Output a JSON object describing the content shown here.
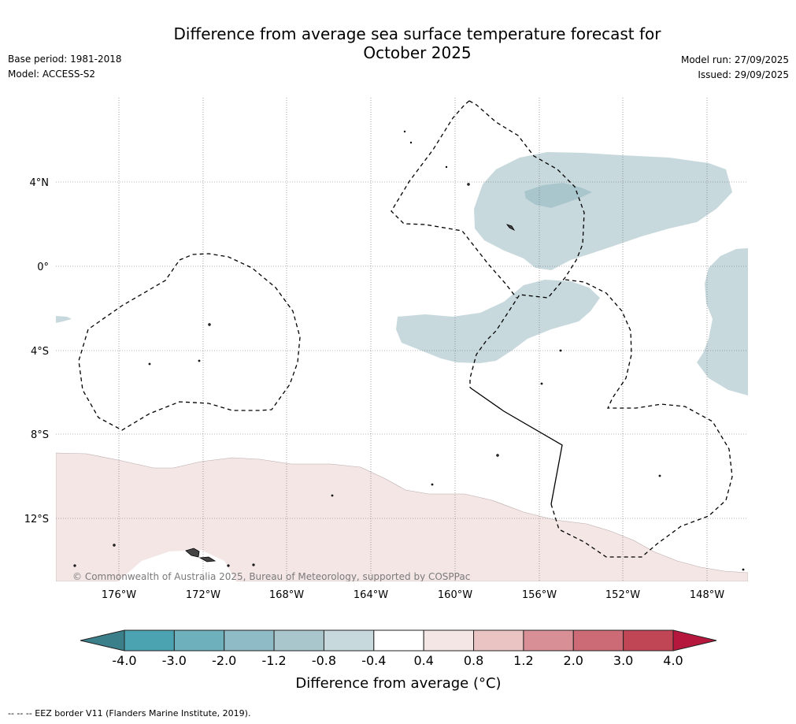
{
  "title_line1": "Difference from average sea surface temperature forecast for",
  "title_line2": "October 2025",
  "meta_left": {
    "base_period": "Base period: 1981-2018",
    "model": "Model: ACCESS-S2"
  },
  "meta_right": {
    "model_run": "Model run: 27/09/2025",
    "issued": "Issued: 29/09/2025"
  },
  "map": {
    "lat_labels": [
      "4°N",
      "0°",
      "4°S",
      "8°S",
      "12°S"
    ],
    "lon_labels": [
      "176°W",
      "172°W",
      "168°W",
      "164°W",
      "160°W",
      "156°W",
      "152°W",
      "148°W"
    ],
    "copyright": "© Commonwealth of Australia 2025, Bureau of Meteorology, supported by COSPPac"
  },
  "colorbar": {
    "ticks": [
      "-4.0",
      "-3.0",
      "-2.0",
      "-1.2",
      "-0.8",
      "-0.4",
      "0.4",
      "0.8",
      "1.2",
      "2.0",
      "3.0",
      "4.0"
    ],
    "colors": [
      "#4ba3b1",
      "#6eb0bc",
      "#8ebbc5",
      "#aac6cd",
      "#c8d9dd",
      "#ffffff",
      "#f5e6e6",
      "#e9c4c3",
      "#d88f95",
      "#cc6a76",
      "#c04656"
    ],
    "under_color": "#3a7f8a",
    "over_color": "#b5173d",
    "title": "Difference from average (°C)"
  },
  "colors": {
    "cool_anomaly": "#c8d9dd",
    "cool_core": "#aac6cd",
    "warm_anomaly": "#f5e6e6"
  },
  "footer": "-- -- -- EEZ border V11 (Flanders Marine Institute, 2019)."
}
